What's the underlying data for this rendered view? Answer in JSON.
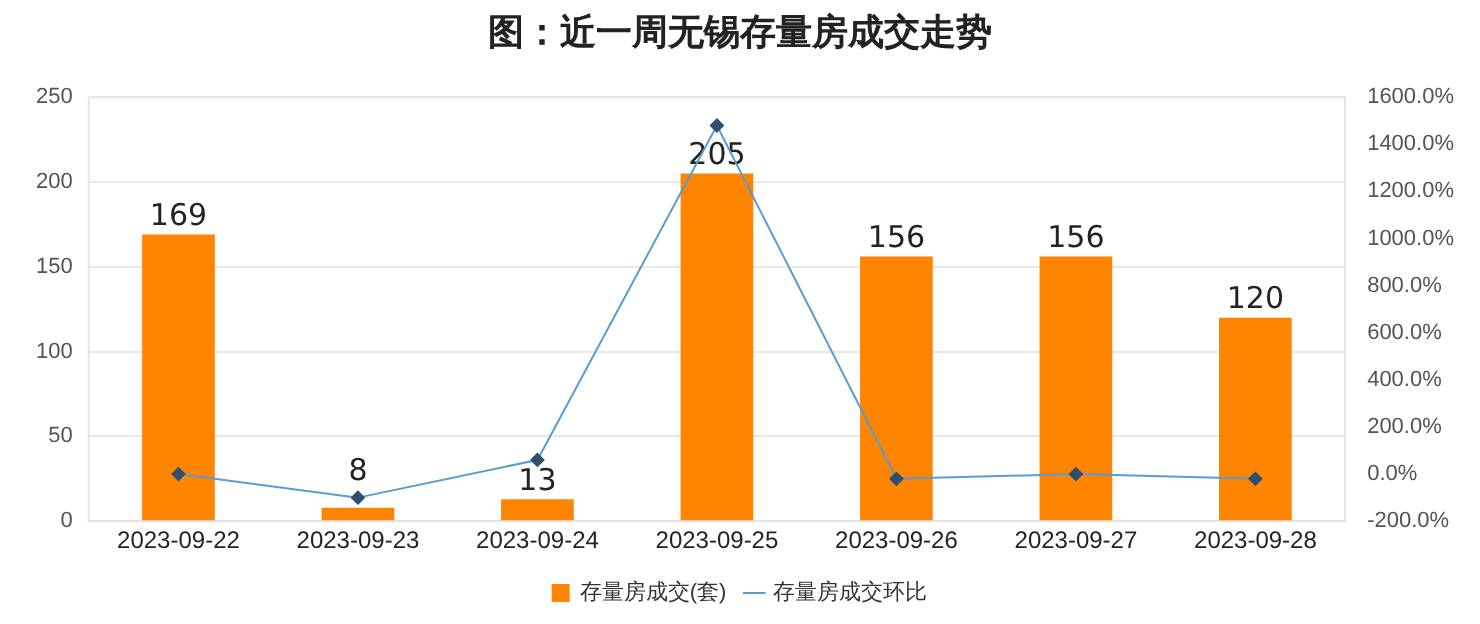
{
  "chart_data": {
    "type": "bar",
    "title": "图：近一周无锡存量房成交走势",
    "categories": [
      "2023-09-22",
      "2023-09-23",
      "2023-09-24",
      "2023-09-25",
      "2023-09-26",
      "2023-09-27",
      "2023-09-28"
    ],
    "series": [
      {
        "name": "存量房成交(套)",
        "color": "#ff8400",
        "values": [
          169,
          8,
          13,
          205,
          156,
          156,
          120
        ],
        "data_labels": true
      },
      {
        "name": "存量房成交环比",
        "type": "line",
        "axis": "y2",
        "color": "#5b9bd5",
        "values": [
          0,
          -100,
          60,
          1480,
          -20,
          0,
          -20
        ]
      }
    ],
    "ylim": [
      0,
      250
    ],
    "yticks": [
      0,
      50,
      100,
      150,
      200,
      250
    ],
    "y2lim": [
      -200,
      1600
    ],
    "y2ticks": [
      {
        "value": -200,
        "label": "-200.0%"
      },
      {
        "value": 0,
        "label": "0.0%"
      },
      {
        "value": 200,
        "label": "200.0%"
      },
      {
        "value": 400,
        "label": "400.0%"
      },
      {
        "value": 600,
        "label": "600.0%"
      },
      {
        "value": 800,
        "label": "800.0%"
      },
      {
        "value": 1000,
        "label": "1000.0%"
      },
      {
        "value": 1200,
        "label": "1200.0%"
      },
      {
        "value": 1400,
        "label": "1400.0%"
      },
      {
        "value": 1600,
        "label": "1600.0%"
      }
    ],
    "grid": "y",
    "legend": "bottom",
    "marker": "diamond",
    "line_style": "solid"
  }
}
